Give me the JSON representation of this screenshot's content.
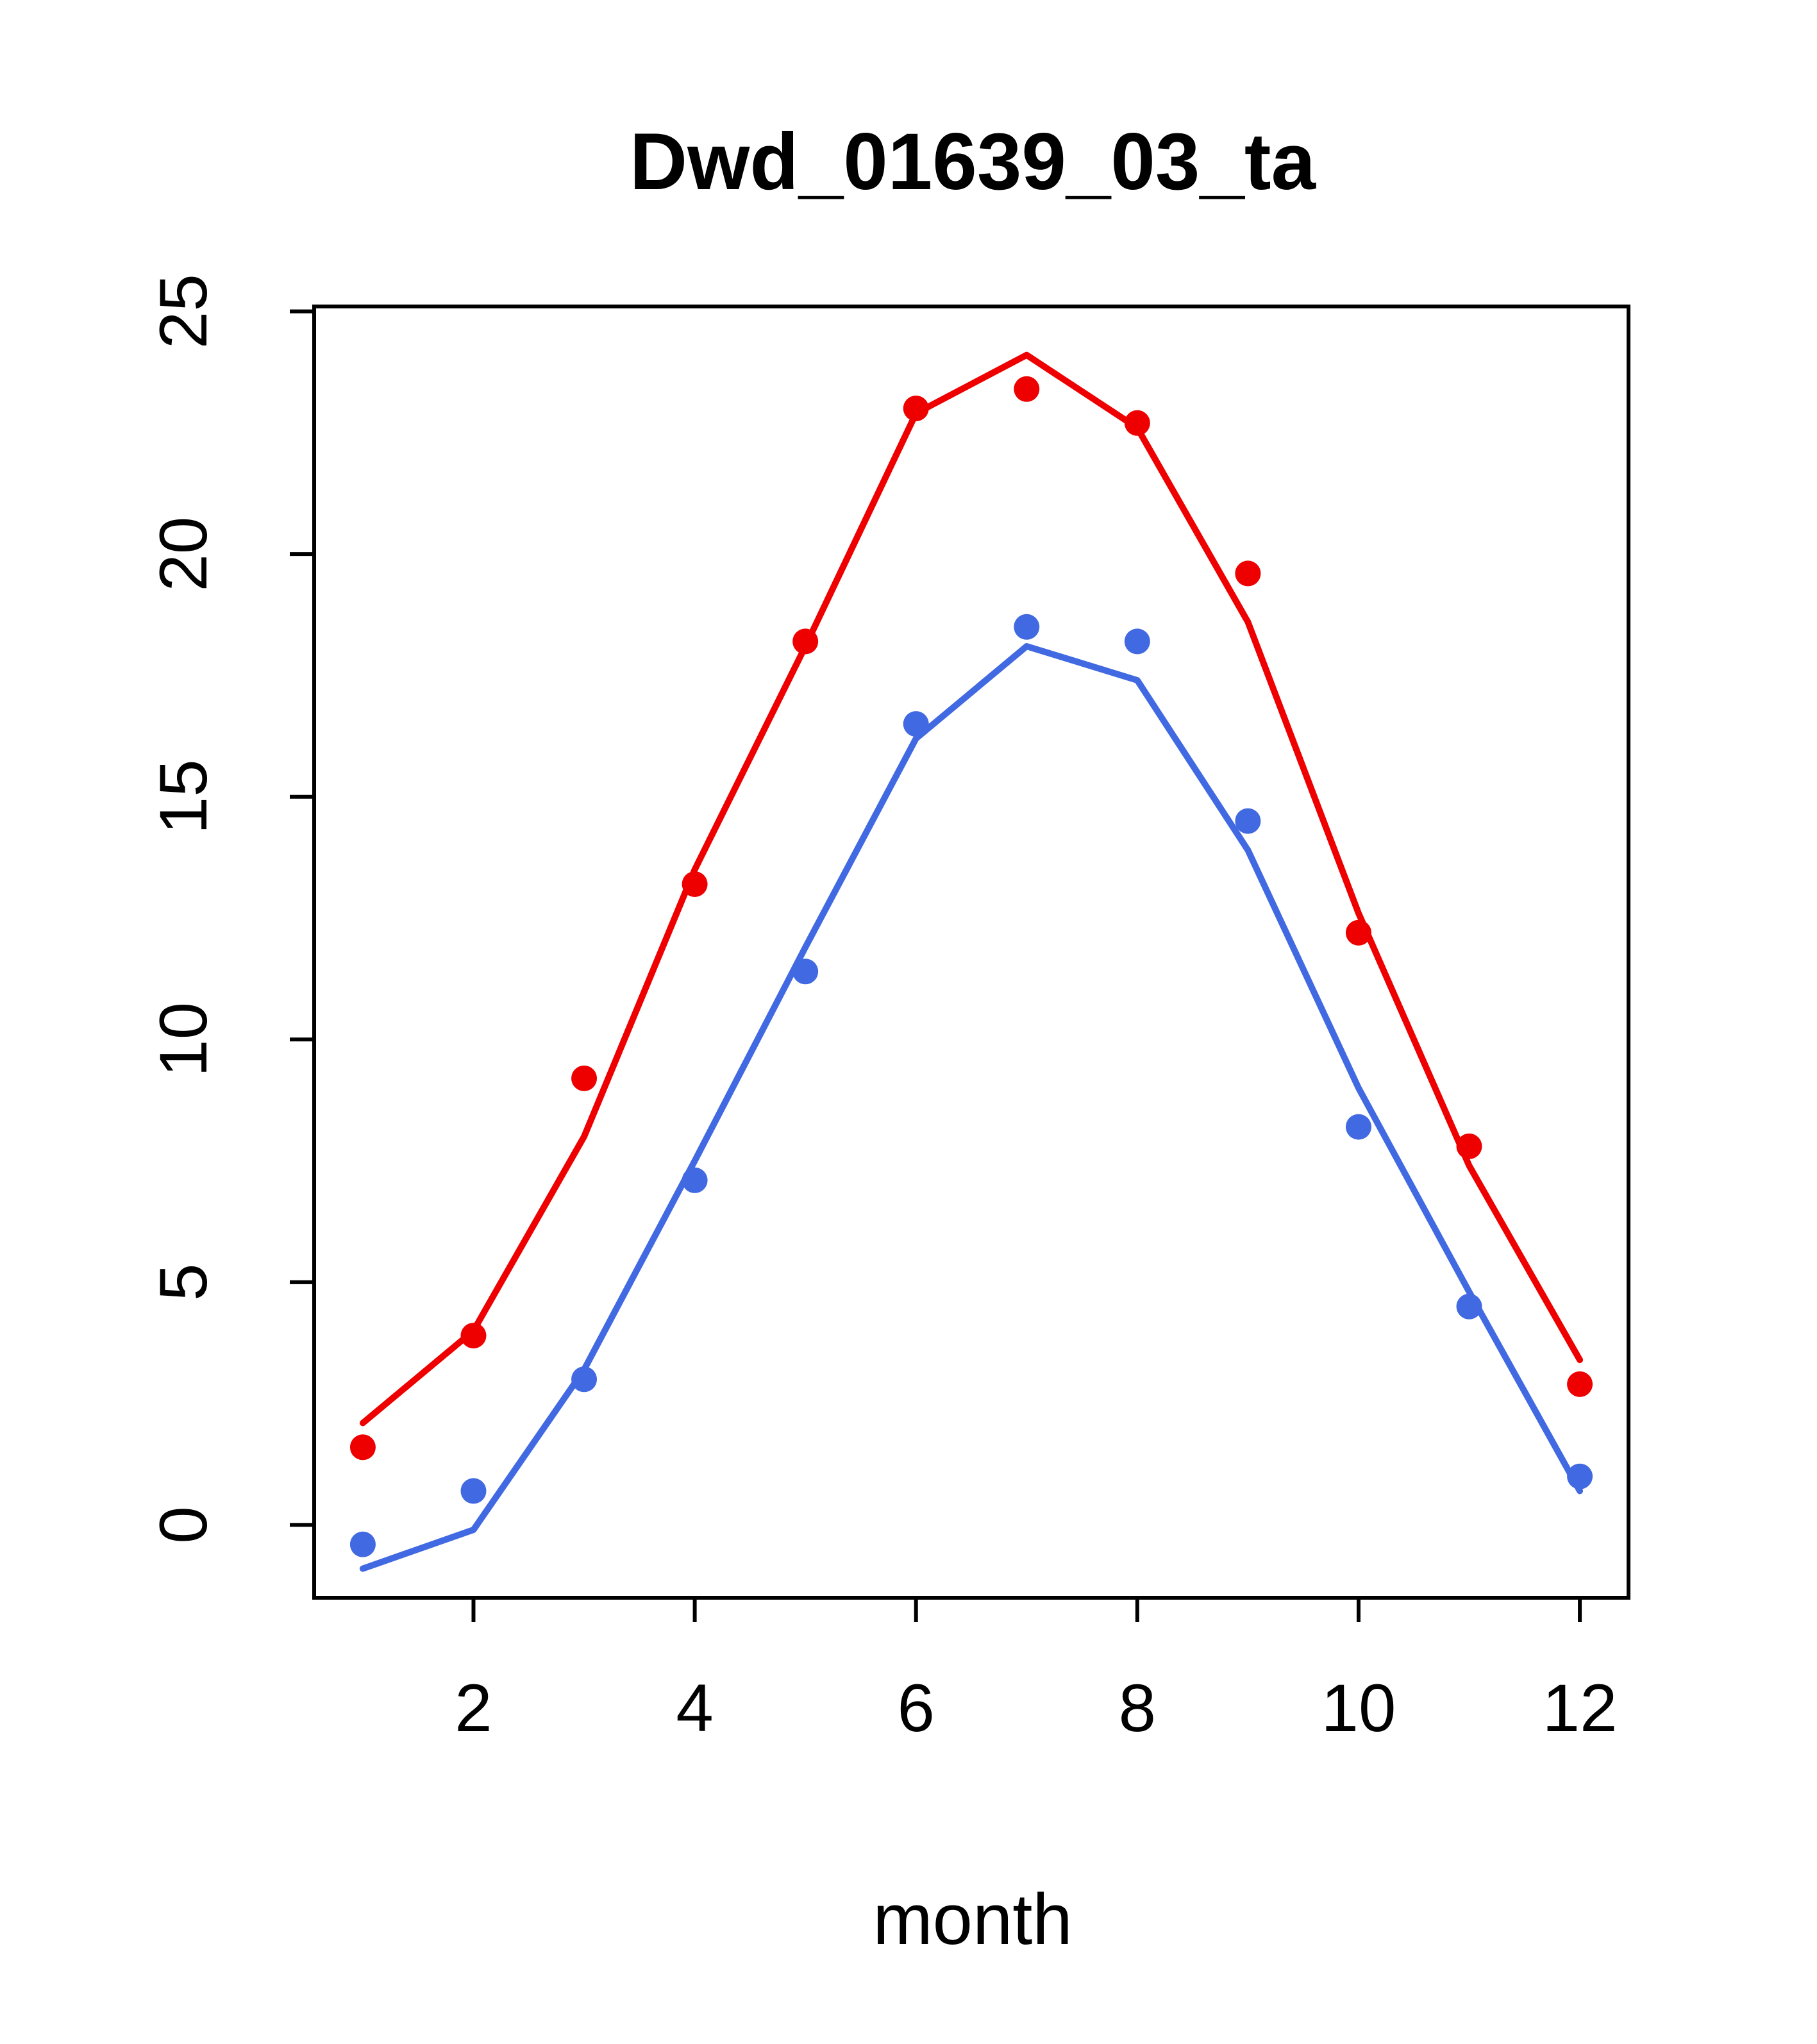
{
  "page": {
    "background": "#ffffff"
  },
  "chart_data": {
    "type": "line",
    "title": "Dwd_01639_03_ta",
    "xlabel": "month",
    "ylabel": "",
    "x": [
      1,
      2,
      3,
      4,
      5,
      6,
      7,
      8,
      9,
      10,
      11,
      12
    ],
    "xlim": [
      0.56,
      12.44
    ],
    "ylim": [
      -1.5,
      25.1
    ],
    "xticks": [
      2,
      4,
      6,
      8,
      10,
      12
    ],
    "yticks": [
      0,
      5,
      10,
      15,
      20,
      25
    ],
    "grid": false,
    "legend": "none",
    "axis_color": "#000000",
    "colors": {
      "red": "#ee0000",
      "blue": "#4169e1"
    },
    "series": [
      {
        "name": "red-line",
        "type": "line",
        "color": "#ee0000",
        "values": [
          2.1,
          4.0,
          8.0,
          13.5,
          18.1,
          22.9,
          24.1,
          22.6,
          18.6,
          12.6,
          7.4,
          3.4
        ]
      },
      {
        "name": "blue-line",
        "type": "line",
        "color": "#4169e1",
        "values": [
          -0.9,
          -0.1,
          3.2,
          7.5,
          11.9,
          16.2,
          18.1,
          17.4,
          13.9,
          9.0,
          4.8,
          0.7
        ]
      },
      {
        "name": "red-points",
        "type": "scatter",
        "color": "#ee0000",
        "values": [
          1.6,
          3.9,
          9.2,
          13.2,
          18.2,
          23.0,
          23.4,
          22.7,
          19.6,
          12.2,
          7.8,
          2.9
        ]
      },
      {
        "name": "blue-points",
        "type": "scatter",
        "color": "#4169e1",
        "values": [
          -0.4,
          0.7,
          3.0,
          7.1,
          11.4,
          16.5,
          18.5,
          18.2,
          14.5,
          8.2,
          4.5,
          1.0
        ]
      }
    ]
  }
}
